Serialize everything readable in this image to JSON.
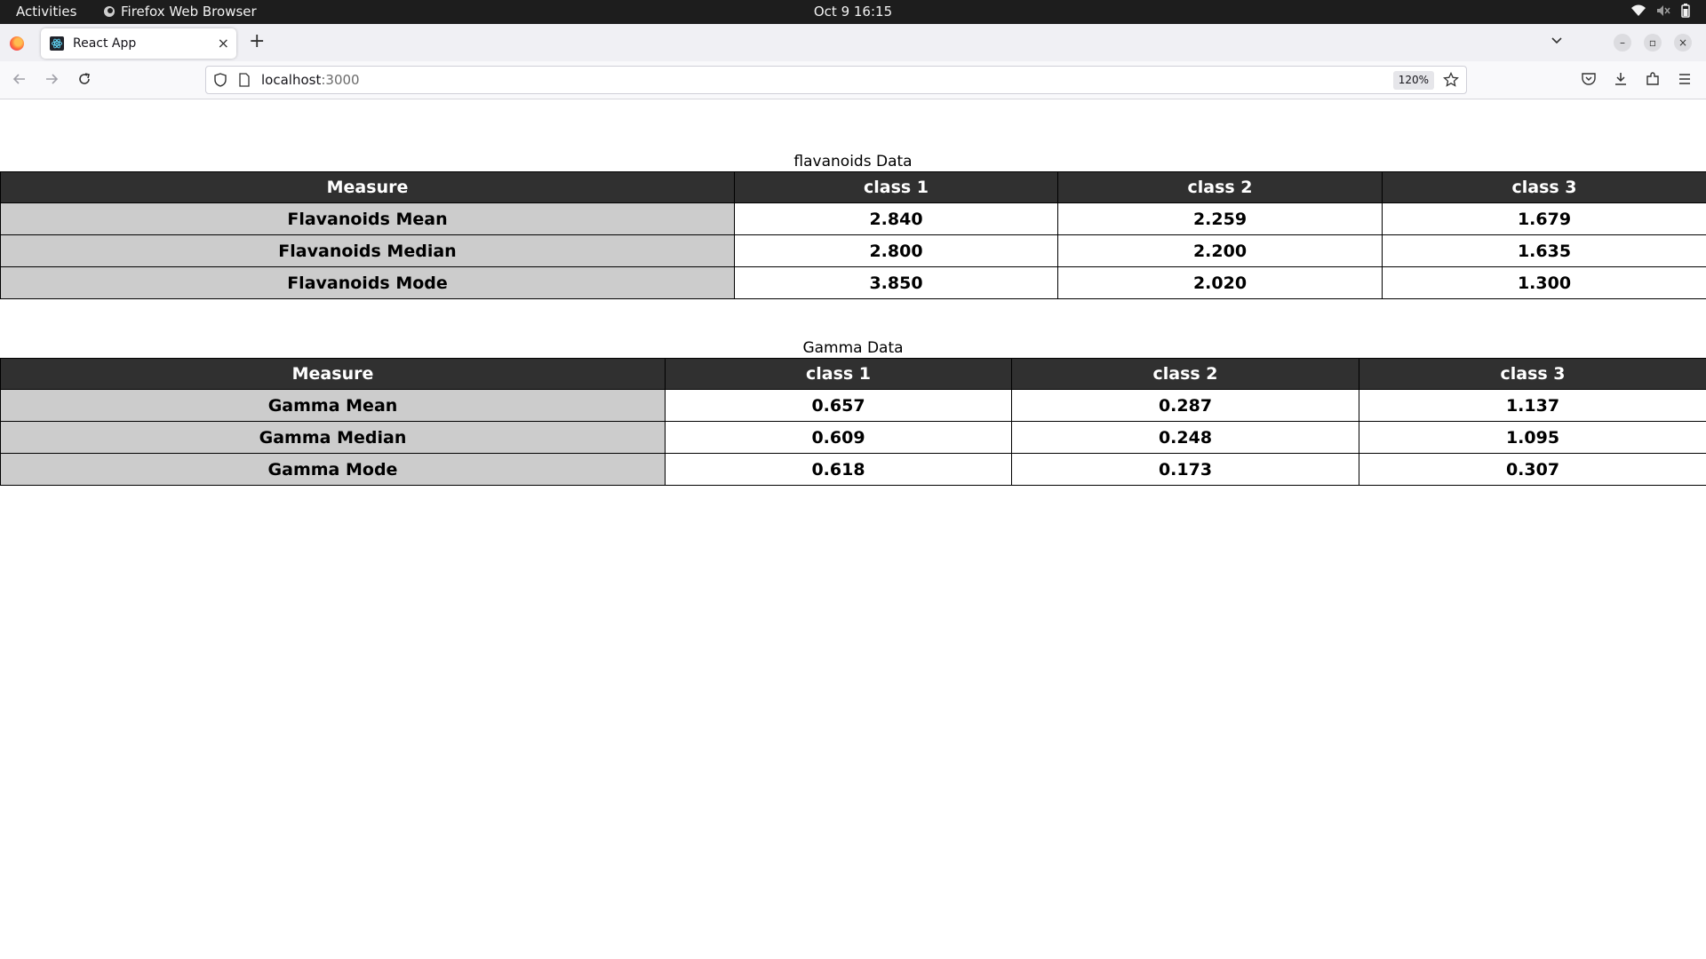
{
  "system": {
    "activities_label": "Activities",
    "app_name": "Firefox Web Browser",
    "clock": "Oct 9  16:15"
  },
  "browser": {
    "tab_title": "React App",
    "url_host": "localhost",
    "url_port": ":3000",
    "zoom_level": "120%"
  },
  "page": {
    "tables": [
      {
        "caption": "flavanoids Data",
        "headers": [
          "Measure",
          "class 1",
          "class 2",
          "class 3"
        ],
        "rows": [
          [
            "Flavanoids Mean",
            "2.840",
            "2.259",
            "1.679"
          ],
          [
            "Flavanoids Median",
            "2.800",
            "2.200",
            "1.635"
          ],
          [
            "Flavanoids Mode",
            "3.850",
            "2.020",
            "1.300"
          ]
        ]
      },
      {
        "caption": "Gamma Data",
        "headers": [
          "Measure",
          "class 1",
          "class 2",
          "class 3"
        ],
        "rows": [
          [
            "Gamma Mean",
            "0.657",
            "0.287",
            "1.137"
          ],
          [
            "Gamma Median",
            "0.609",
            "0.248",
            "1.095"
          ],
          [
            "Gamma Mode",
            "0.618",
            "0.173",
            "0.307"
          ]
        ]
      }
    ]
  }
}
